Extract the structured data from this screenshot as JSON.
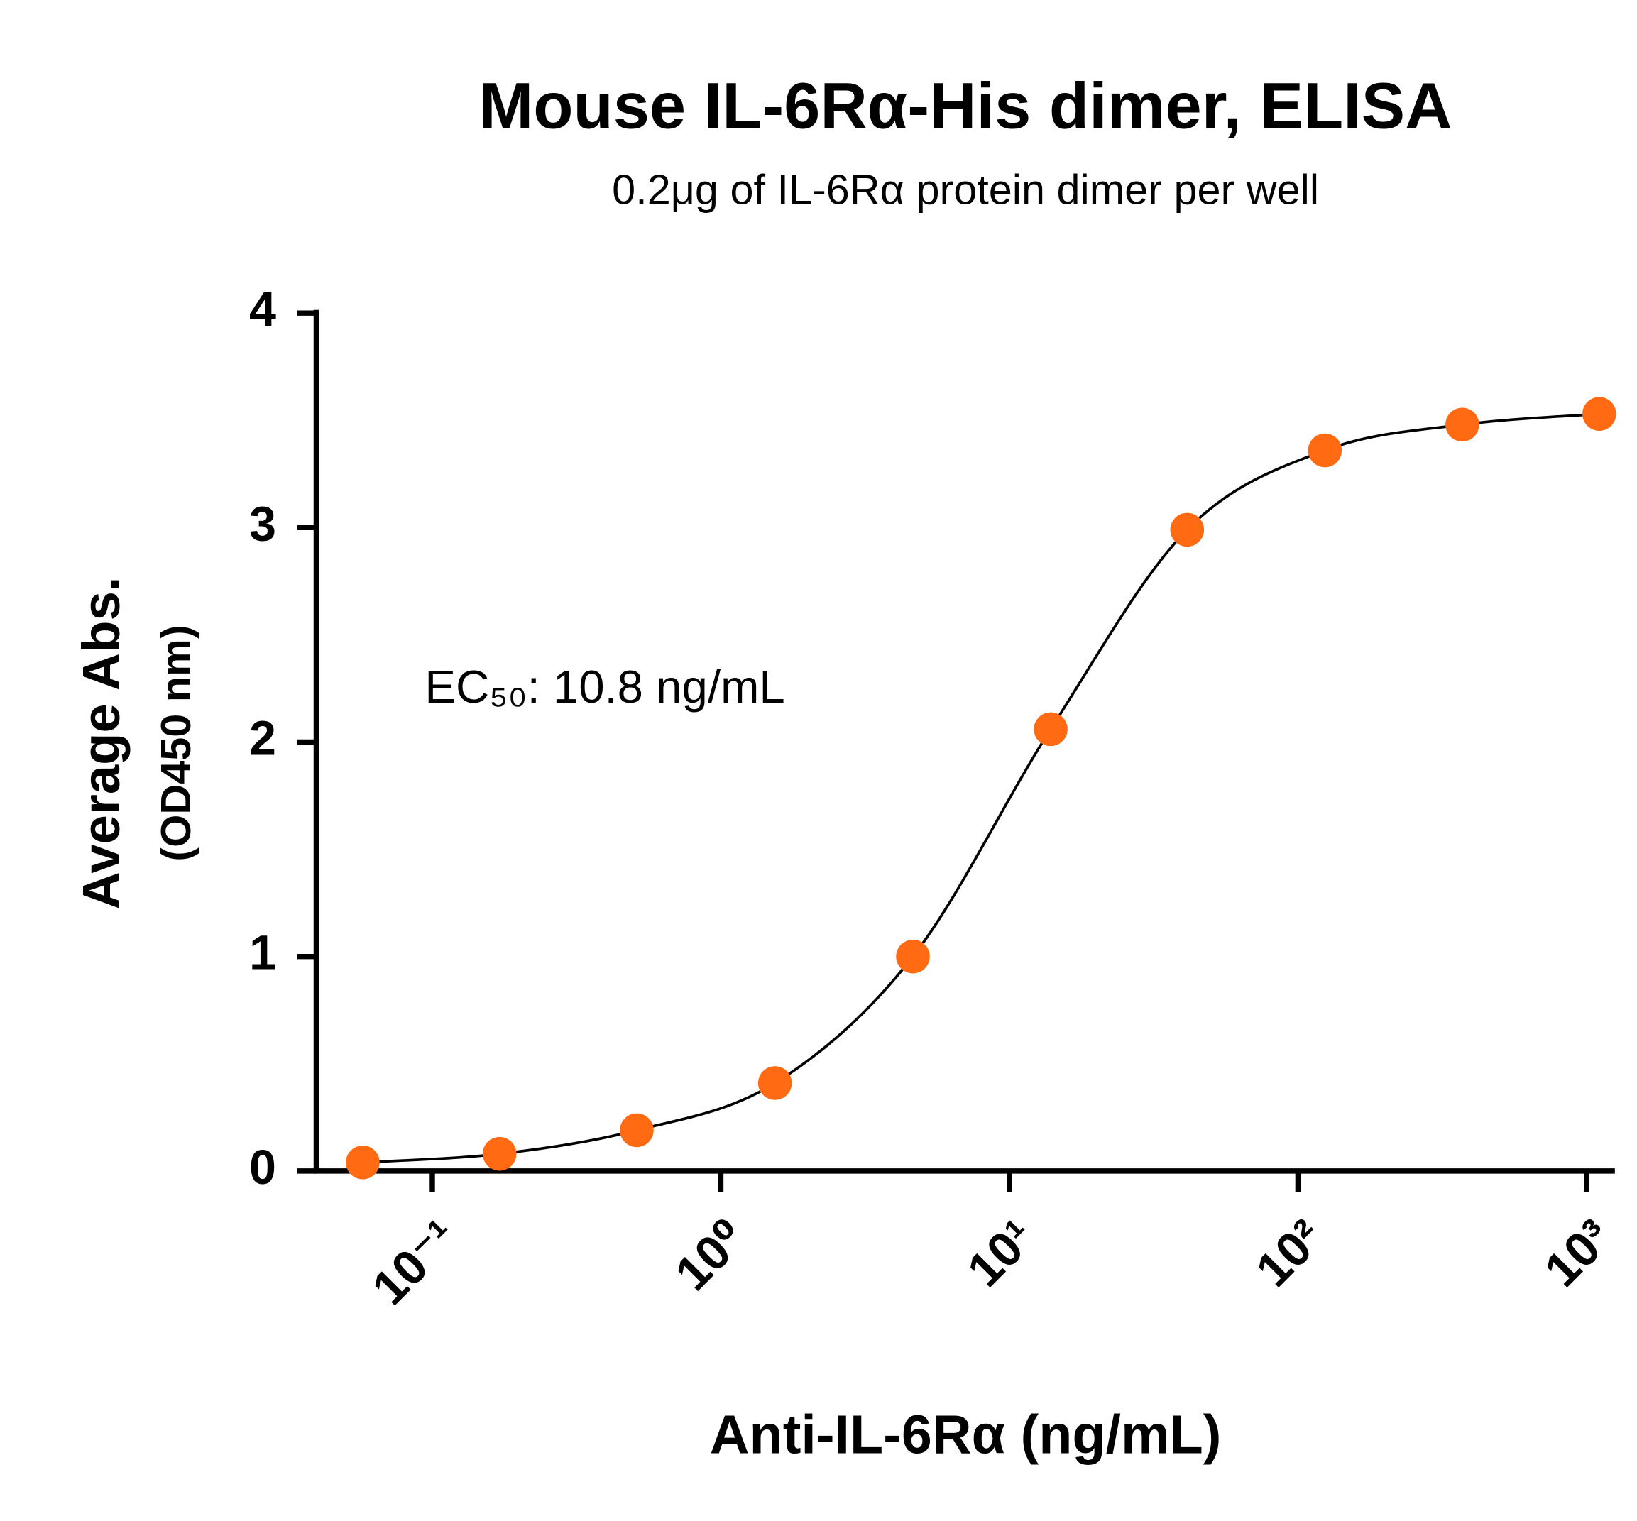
{
  "chart_data": {
    "type": "scatter",
    "title": "Mouse IL-6Rα-His dimer, ELISA",
    "subtitle": "0.2μg of IL-6Rα protein dimer per well",
    "annotation": "EC₅₀: 10.8 ng/mL",
    "x_label": "Anti-IL-6Rα  (ng/mL)",
    "y_label": [
      "Average Abs.",
      "(OD450 nm)"
    ],
    "x_scale": "log",
    "xlim": [
      0.0396,
      1233
    ],
    "xticks": [
      {
        "value": 0.1,
        "label": "10⁻¹"
      },
      {
        "value": 1,
        "label": "10⁰"
      },
      {
        "value": 10,
        "label": "10¹"
      },
      {
        "value": 100,
        "label": "10²"
      },
      {
        "value": 1000,
        "label": "10³"
      }
    ],
    "ylim": [
      0,
      4
    ],
    "yticks": [
      0,
      1,
      2,
      3,
      4
    ],
    "grid": false,
    "fit_line_color": "#000000",
    "series": [
      {
        "color": "#ff6a13",
        "x": [
          0.0574,
          0.171,
          0.511,
          1.54,
          4.63,
          13.9,
          41.3,
          124,
          371,
          1107
        ],
        "values": [
          0.04,
          0.08,
          0.19,
          0.41,
          1.0,
          2.06,
          2.99,
          3.36,
          3.48,
          3.53
        ]
      }
    ]
  }
}
